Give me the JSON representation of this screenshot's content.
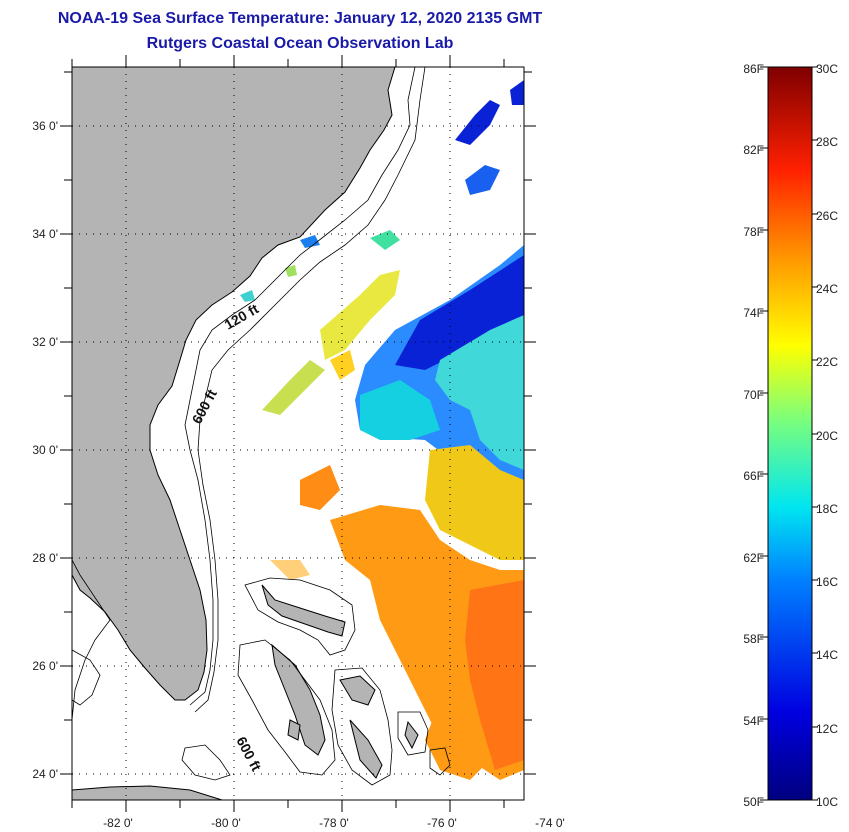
{
  "header": {
    "title": "NOAA-19 Sea Surface Temperature:  January 12, 2020 2135 GMT",
    "subtitle": "Rutgers Coastal Ocean Observation Lab"
  },
  "map": {
    "lat_labels": [
      "36 0'",
      "34 0'",
      "32 0'",
      "30 0'",
      "28 0'",
      "26 0'",
      "24 0'"
    ],
    "lon_labels": [
      "-82 0'",
      "-80 0'",
      "-78 0'",
      "-76 0'",
      "-74 0'"
    ],
    "depth_labels": {
      "d120": "120 ft",
      "d600a": "600 ft",
      "d600b": "600 ft"
    },
    "colors": {
      "land": "#b4b4b4",
      "ocean": "#ffffff",
      "coast": "#000000"
    }
  },
  "colorbar": {
    "f_labels": [
      "86F",
      "82F",
      "78F",
      "74F",
      "70F",
      "66F",
      "62F",
      "58F",
      "54F",
      "50F"
    ],
    "c_labels": [
      "30C",
      "28C",
      "26C",
      "24C",
      "22C",
      "20C",
      "18C",
      "16C",
      "14C",
      "12C",
      "10C"
    ],
    "range_c": [
      10,
      30
    ],
    "range_f": [
      50,
      86
    ]
  }
}
